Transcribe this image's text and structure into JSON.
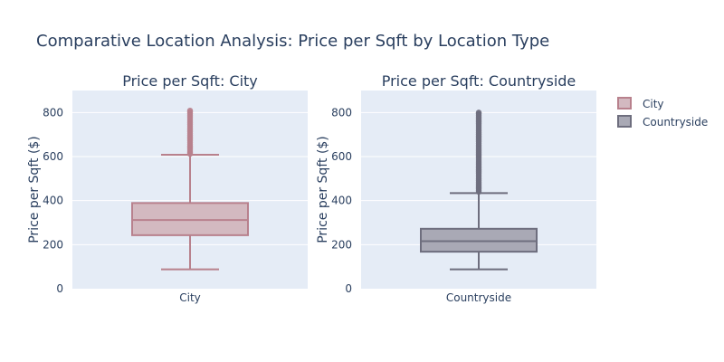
{
  "title": "Comparative Location Analysis: Price per Sqft by Location Type",
  "colors": {
    "plot_bg": "#e5ecf6",
    "grid": "#ffffff",
    "text": "#2a3f5f",
    "city_line": "#b8818d",
    "city_fill": "#d3b9c0",
    "countryside_line": "#6e6e7e",
    "countryside_fill": "#a9a9b5"
  },
  "legend": {
    "position": "top-right",
    "items": [
      {
        "label": "City",
        "color_key": "city"
      },
      {
        "label": "Countryside",
        "color_key": "countryside"
      }
    ]
  },
  "chart_data": [
    {
      "type": "box",
      "title": "Price per Sqft: City",
      "ylabel": "Price per Sqft ($)",
      "ylim": [
        0,
        900
      ],
      "yticks": [
        0,
        200,
        400,
        600,
        800
      ],
      "grid": true,
      "category": "City",
      "series_key": "city",
      "stats": {
        "min": 88,
        "q1": 243,
        "median": 312,
        "q3": 389,
        "max": 608
      },
      "outliers": [
        612,
        618,
        625,
        633,
        641,
        648,
        656,
        664,
        672,
        680,
        688,
        696,
        705,
        713,
        721,
        730,
        738,
        746,
        755,
        763,
        771,
        780,
        788,
        796,
        803,
        809
      ]
    },
    {
      "type": "box",
      "title": "Price per Sqft: Countryside",
      "ylabel": "Price per Sqft ($)",
      "ylim": [
        0,
        900
      ],
      "yticks": [
        0,
        200,
        400,
        600,
        800
      ],
      "grid": true,
      "category": "Countryside",
      "series_key": "countryside",
      "stats": {
        "min": 88,
        "q1": 168,
        "median": 216,
        "q3": 272,
        "max": 434
      },
      "outliers": [
        440,
        447,
        454,
        461,
        468,
        476,
        484,
        492,
        500,
        508,
        516,
        524,
        532,
        540,
        548,
        556,
        564,
        572,
        580,
        588,
        596,
        604,
        612,
        620,
        628,
        636,
        644,
        652,
        660,
        668,
        676,
        684,
        692,
        700,
        708,
        716,
        724,
        732,
        740,
        748,
        756,
        764,
        772,
        780,
        788,
        795,
        800
      ]
    }
  ]
}
